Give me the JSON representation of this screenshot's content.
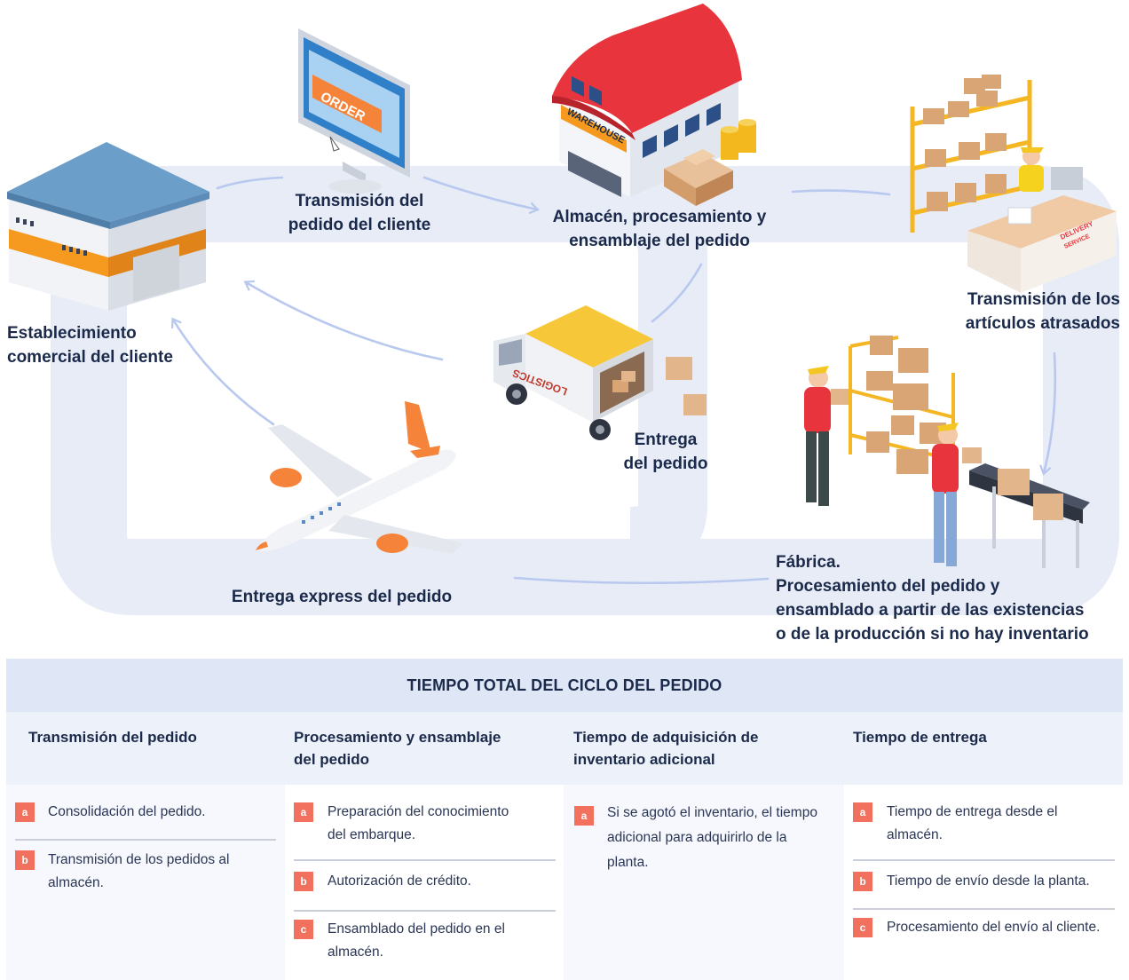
{
  "diagram": {
    "labels": {
      "customer_business": [
        "Establecimiento",
        "comercial del cliente"
      ],
      "order_transmission": [
        "Transmisión del",
        "pedido del cliente"
      ],
      "warehouse": [
        "Almacén, procesamiento y",
        "ensamblaje del pedido"
      ],
      "backorder": [
        "Transmisión de los",
        "artículos atrasados"
      ],
      "delivery": [
        "Entrega",
        "del pedido"
      ],
      "factory": [
        "Fábrica.",
        "Procesamiento del pedido y",
        "ensamblado a partir de las existencias",
        "o de la producción si no hay inventario"
      ],
      "express": [
        "Entrega express del pedido"
      ]
    },
    "illustration_text": {
      "monitor_sign": "ORDER",
      "warehouse_sign": "WAREHOUSE",
      "truck_sign": "LOGISTICS",
      "counter_sign": [
        "DELIVERY",
        "SERVICE"
      ]
    },
    "colors": {
      "loop": "#e6ebf6",
      "arrow": "#b8c8ee",
      "roof_red": "#e8343c",
      "roof_blue": "#6b9ec9",
      "orange_band": "#f59a1e",
      "truck_yellow": "#f7c73a",
      "shirt_red": "#e8343c",
      "cardboard": "#e2b58b",
      "shelf_yellow": "#f5b623",
      "plane_orange": "#f5843a"
    }
  },
  "table": {
    "title": "TIEMPO TOTAL DEL CICLO DEL PEDIDO",
    "columns": [
      {
        "header": [
          "Transmisión del pedido"
        ],
        "items": [
          {
            "badge": "a",
            "lines": [
              "Consolidación del pedido."
            ]
          },
          {
            "badge": "b",
            "lines": [
              "Transmisión de los pedidos al",
              "almacén."
            ]
          }
        ]
      },
      {
        "header": [
          "Procesamiento y ensamblaje",
          "del pedido"
        ],
        "items": [
          {
            "badge": "a",
            "lines": [
              "Preparación del conocimiento",
              "del embarque."
            ]
          },
          {
            "badge": "b",
            "lines": [
              "Autorización de crédito."
            ]
          },
          {
            "badge": "c",
            "lines": [
              "Ensamblado del pedido en el",
              "almacén."
            ]
          }
        ]
      },
      {
        "header": [
          "Tiempo de adquisición de",
          "inventario adicional"
        ],
        "items": [
          {
            "badge": "a",
            "lines": [
              "Si se agotó el inventario, el tiempo",
              "adicional para adquirirlo de la",
              "planta."
            ]
          }
        ]
      },
      {
        "header": [
          "Tiempo de entrega"
        ],
        "items": [
          {
            "badge": "a",
            "lines": [
              "Tiempo de entrega desde el",
              "almacén."
            ]
          },
          {
            "badge": "b",
            "lines": [
              "Tiempo de envío desde la planta."
            ]
          },
          {
            "badge": "c",
            "lines": [
              "Procesamiento del envío al cliente."
            ]
          }
        ]
      }
    ]
  }
}
